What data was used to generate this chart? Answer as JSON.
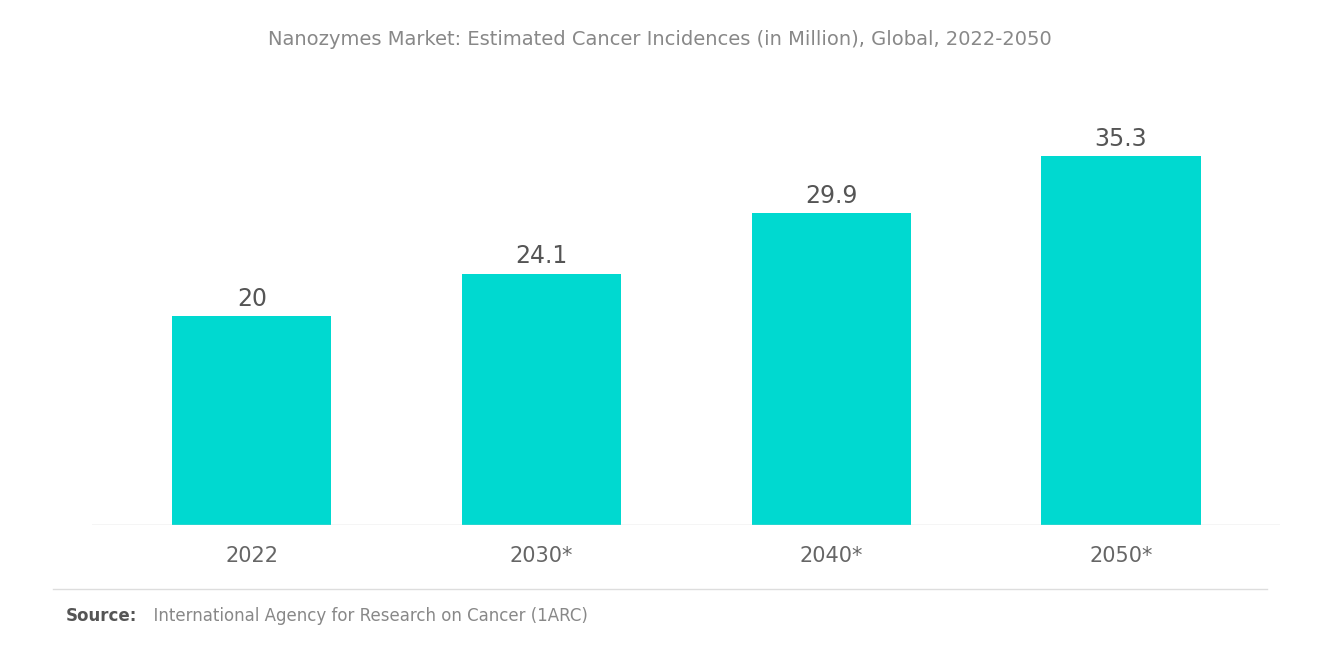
{
  "title": "Nanozymes Market: Estimated Cancer Incidences (in Million), Global, 2022-2050",
  "categories": [
    "2022",
    "2030*",
    "2040*",
    "2050*"
  ],
  "values": [
    20,
    24.1,
    29.9,
    35.3
  ],
  "bar_color": "#00D9D0",
  "label_color": "#555555",
  "title_color": "#888888",
  "xlabel_color": "#666666",
  "source_bold": "Source:",
  "source_regular": "  International Agency for Research on Cancer (1ARC)",
  "background_color": "#ffffff",
  "title_fontsize": 14,
  "label_fontsize": 17,
  "xtick_fontsize": 15,
  "source_fontsize": 12,
  "bar_width": 0.55,
  "ylim": [
    0,
    42
  ]
}
